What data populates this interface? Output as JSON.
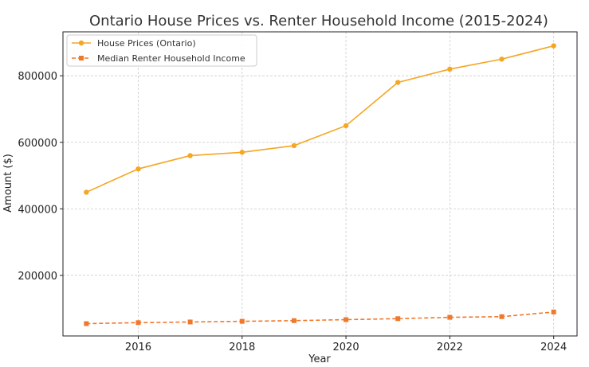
{
  "chart_data": {
    "type": "line",
    "title": "Ontario House Prices vs. Renter Household Income (2015-2024)",
    "xlabel": "Year",
    "ylabel": "Amount ($)",
    "x": [
      2015,
      2016,
      2017,
      2018,
      2019,
      2020,
      2021,
      2022,
      2023,
      2024
    ],
    "xlim": [
      2014.55,
      2024.45
    ],
    "ylim": [
      18000,
      932000
    ],
    "xticks": [
      2016,
      2018,
      2020,
      2022,
      2024
    ],
    "yticks": [
      200000,
      400000,
      600000,
      800000
    ],
    "grid": true,
    "legend_position": "top-left",
    "series": [
      {
        "name": "House Prices (Ontario)",
        "color": "#f5a623",
        "marker": "circle",
        "linestyle": "solid",
        "values": [
          450000,
          520000,
          560000,
          570000,
          590000,
          650000,
          780000,
          820000,
          850000,
          890000
        ]
      },
      {
        "name": "Median Renter Household Income",
        "color": "#f0782a",
        "marker": "square",
        "linestyle": "dashed",
        "values": [
          55000,
          58000,
          60000,
          62000,
          64000,
          67000,
          70000,
          74000,
          76000,
          90000
        ]
      }
    ]
  }
}
